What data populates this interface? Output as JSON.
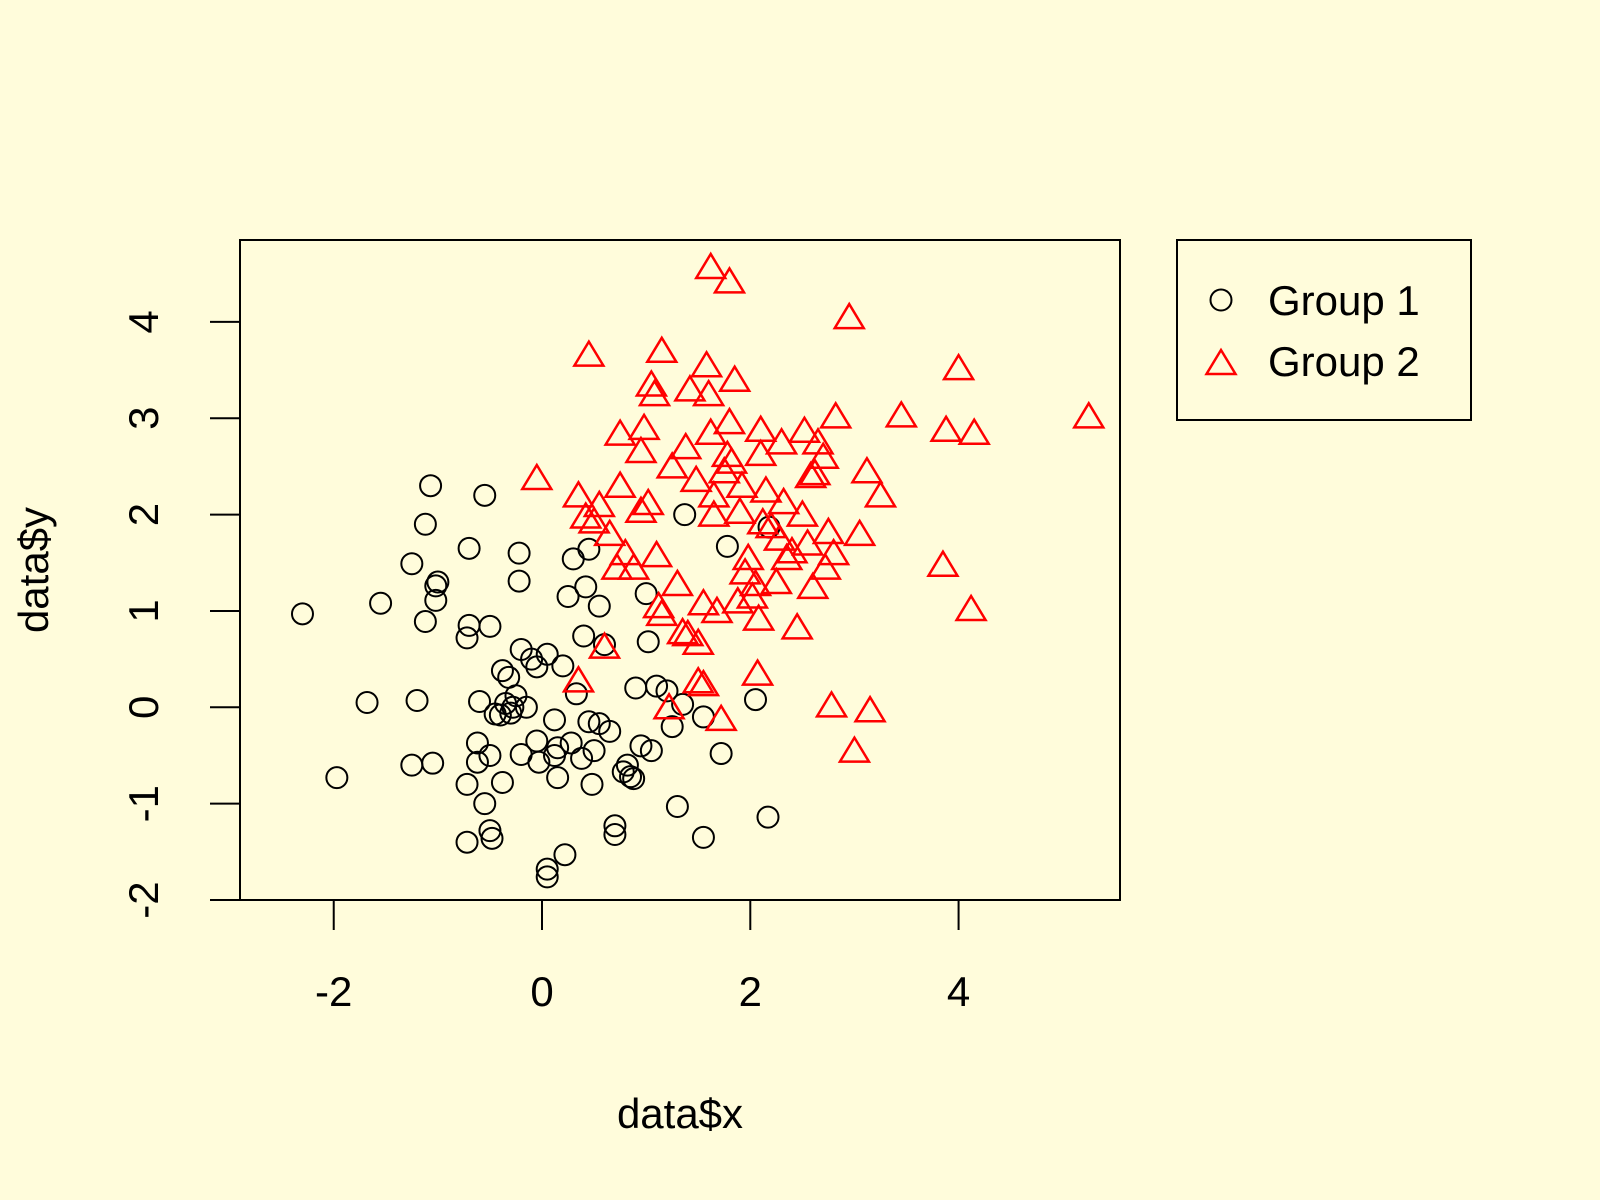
{
  "colors": {
    "background": "#FFFCDB",
    "group1": "#000000",
    "group2": "#FF0000",
    "axis": "#000000"
  },
  "chart_data": {
    "type": "scatter",
    "title": "",
    "xlabel": "data$x",
    "ylabel": "data$y",
    "xlim": [
      -2.9,
      5.55
    ],
    "ylim": [
      -2.0,
      4.85
    ],
    "xticks": [
      -2,
      0,
      2,
      4
    ],
    "xtick_labels": [
      "-2",
      "0",
      "2",
      "4"
    ],
    "yticks": [
      -2,
      -1,
      0,
      1,
      2,
      3,
      4
    ],
    "ytick_labels": [
      "-2",
      "-1",
      "0",
      "1",
      "2",
      "3",
      "4"
    ],
    "grid": false,
    "legend_position": "outside-right-top",
    "series": [
      {
        "name": "Group 1",
        "marker": "circle",
        "color": "#000000",
        "points": [
          [
            -2.3,
            0.97
          ],
          [
            -1.97,
            -0.73
          ],
          [
            -1.68,
            0.05
          ],
          [
            -1.55,
            1.08
          ],
          [
            -1.25,
            1.49
          ],
          [
            -1.25,
            -0.6
          ],
          [
            -1.2,
            0.07
          ],
          [
            -1.12,
            0.89
          ],
          [
            -1.12,
            1.9
          ],
          [
            -1.07,
            2.3
          ],
          [
            -1.05,
            -0.58
          ],
          [
            -1.02,
            1.11
          ],
          [
            -1.02,
            1.26
          ],
          [
            -1.0,
            1.3
          ],
          [
            -0.72,
            0.72
          ],
          [
            -0.7,
            1.65
          ],
          [
            -0.7,
            0.85
          ],
          [
            -0.72,
            -0.8
          ],
          [
            -0.72,
            -1.4
          ],
          [
            -0.62,
            -0.37
          ],
          [
            -0.62,
            -0.57
          ],
          [
            -0.6,
            0.06
          ],
          [
            -0.55,
            2.2
          ],
          [
            -0.55,
            -1.0
          ],
          [
            -0.5,
            0.84
          ],
          [
            -0.5,
            -1.28
          ],
          [
            -0.48,
            -1.36
          ],
          [
            -0.5,
            -0.5
          ],
          [
            -0.45,
            -0.07
          ],
          [
            -0.4,
            -0.08
          ],
          [
            -0.38,
            0.38
          ],
          [
            -0.38,
            -0.78
          ],
          [
            -0.35,
            0.04
          ],
          [
            -0.32,
            0.31
          ],
          [
            -0.3,
            -0.06
          ],
          [
            -0.28,
            0.0
          ],
          [
            -0.25,
            0.12
          ],
          [
            -0.22,
            1.6
          ],
          [
            -0.22,
            1.31
          ],
          [
            -0.2,
            0.6
          ],
          [
            -0.2,
            -0.49
          ],
          [
            -0.15,
            0.0
          ],
          [
            -0.1,
            0.5
          ],
          [
            -0.05,
            0.42
          ],
          [
            -0.05,
            -0.35
          ],
          [
            -0.03,
            -0.57
          ],
          [
            0.05,
            0.55
          ],
          [
            0.05,
            -1.68
          ],
          [
            0.05,
            -1.76
          ],
          [
            0.12,
            -0.5
          ],
          [
            0.12,
            -0.13
          ],
          [
            0.15,
            -0.42
          ],
          [
            0.15,
            -0.73
          ],
          [
            0.2,
            0.43
          ],
          [
            0.22,
            -1.53
          ],
          [
            0.25,
            1.15
          ],
          [
            0.28,
            -0.37
          ],
          [
            0.3,
            1.54
          ],
          [
            0.33,
            0.14
          ],
          [
            0.38,
            -0.53
          ],
          [
            0.4,
            0.74
          ],
          [
            0.42,
            1.25
          ],
          [
            0.45,
            1.64
          ],
          [
            0.45,
            -0.15
          ],
          [
            0.48,
            -0.8
          ],
          [
            0.5,
            -0.45
          ],
          [
            0.55,
            1.05
          ],
          [
            0.55,
            -0.17
          ],
          [
            0.6,
            0.65
          ],
          [
            0.65,
            -0.25
          ],
          [
            0.7,
            -1.23
          ],
          [
            0.7,
            -1.32
          ],
          [
            0.78,
            -0.67
          ],
          [
            0.82,
            -0.6
          ],
          [
            0.85,
            -0.72
          ],
          [
            0.88,
            -0.74
          ],
          [
            0.9,
            0.2
          ],
          [
            0.95,
            -0.4
          ],
          [
            1.0,
            1.18
          ],
          [
            1.02,
            0.68
          ],
          [
            1.05,
            -0.45
          ],
          [
            1.1,
            0.22
          ],
          [
            1.2,
            0.17
          ],
          [
            1.25,
            -0.2
          ],
          [
            1.3,
            -1.03
          ],
          [
            1.35,
            0.03
          ],
          [
            1.37,
            2.0
          ],
          [
            1.55,
            -1.35
          ],
          [
            1.55,
            -0.1
          ],
          [
            1.72,
            -0.48
          ],
          [
            1.78,
            1.67
          ],
          [
            2.05,
            0.08
          ],
          [
            2.17,
            -1.14
          ],
          [
            2.18,
            1.87
          ]
        ]
      },
      {
        "name": "Group 2",
        "marker": "triangle",
        "color": "#FF0000",
        "points": [
          [
            -0.05,
            2.38
          ],
          [
            0.35,
            2.2
          ],
          [
            0.35,
            0.28
          ],
          [
            0.42,
            1.98
          ],
          [
            0.45,
            3.66
          ],
          [
            0.5,
            1.93
          ],
          [
            0.55,
            2.1
          ],
          [
            0.6,
            0.63
          ],
          [
            0.65,
            1.8
          ],
          [
            0.72,
            1.45
          ],
          [
            0.75,
            2.84
          ],
          [
            0.75,
            2.3
          ],
          [
            0.8,
            1.6
          ],
          [
            0.88,
            1.45
          ],
          [
            0.95,
            2.04
          ],
          [
            0.95,
            2.66
          ],
          [
            0.98,
            2.9
          ],
          [
            1.02,
            2.12
          ],
          [
            1.05,
            3.35
          ],
          [
            1.08,
            3.25
          ],
          [
            1.1,
            1.58
          ],
          [
            1.12,
            1.05
          ],
          [
            1.15,
            0.97
          ],
          [
            1.15,
            3.7
          ],
          [
            1.22,
            0.0
          ],
          [
            1.25,
            2.5
          ],
          [
            1.3,
            1.28
          ],
          [
            1.35,
            0.78
          ],
          [
            1.38,
            2.7
          ],
          [
            1.4,
            0.76
          ],
          [
            1.42,
            3.3
          ],
          [
            1.48,
            2.36
          ],
          [
            1.5,
            0.67
          ],
          [
            1.5,
            0.27
          ],
          [
            1.55,
            0.24
          ],
          [
            1.55,
            1.08
          ],
          [
            1.58,
            3.55
          ],
          [
            1.6,
            3.25
          ],
          [
            1.62,
            2.85
          ],
          [
            1.62,
            4.57
          ],
          [
            1.65,
            2.2
          ],
          [
            1.65,
            2.0
          ],
          [
            1.68,
            1.0
          ],
          [
            1.72,
            -0.12
          ],
          [
            1.75,
            2.45
          ],
          [
            1.78,
            2.62
          ],
          [
            1.8,
            4.42
          ],
          [
            1.8,
            2.96
          ],
          [
            1.82,
            2.55
          ],
          [
            1.85,
            3.4
          ],
          [
            1.88,
            1.1
          ],
          [
            1.9,
            2.03
          ],
          [
            1.92,
            2.3
          ],
          [
            1.95,
            1.4
          ],
          [
            1.98,
            1.55
          ],
          [
            2.02,
            1.15
          ],
          [
            2.05,
            1.28
          ],
          [
            2.07,
            0.35
          ],
          [
            2.08,
            0.92
          ],
          [
            2.1,
            2.63
          ],
          [
            2.1,
            2.88
          ],
          [
            2.12,
            1.92
          ],
          [
            2.15,
            2.25
          ],
          [
            2.2,
            1.88
          ],
          [
            2.25,
            1.3
          ],
          [
            2.28,
            1.75
          ],
          [
            2.3,
            2.75
          ],
          [
            2.32,
            2.13
          ],
          [
            2.35,
            1.55
          ],
          [
            2.4,
            1.62
          ],
          [
            2.45,
            0.83
          ],
          [
            2.5,
            2.0
          ],
          [
            2.52,
            2.87
          ],
          [
            2.55,
            1.7
          ],
          [
            2.58,
            2.4
          ],
          [
            2.6,
            1.25
          ],
          [
            2.62,
            2.43
          ],
          [
            2.65,
            2.75
          ],
          [
            2.7,
            2.6
          ],
          [
            2.72,
            1.45
          ],
          [
            2.75,
            1.82
          ],
          [
            2.78,
            0.02
          ],
          [
            2.8,
            1.6
          ],
          [
            2.82,
            3.02
          ],
          [
            2.95,
            4.05
          ],
          [
            3.0,
            -0.45
          ],
          [
            3.05,
            1.8
          ],
          [
            3.12,
            2.45
          ],
          [
            3.15,
            -0.03
          ],
          [
            3.25,
            2.2
          ],
          [
            3.45,
            3.03
          ],
          [
            3.85,
            1.48
          ],
          [
            3.88,
            2.88
          ],
          [
            4.0,
            3.52
          ],
          [
            4.12,
            1.02
          ],
          [
            4.15,
            2.85
          ],
          [
            5.25,
            3.02
          ]
        ]
      }
    ]
  }
}
